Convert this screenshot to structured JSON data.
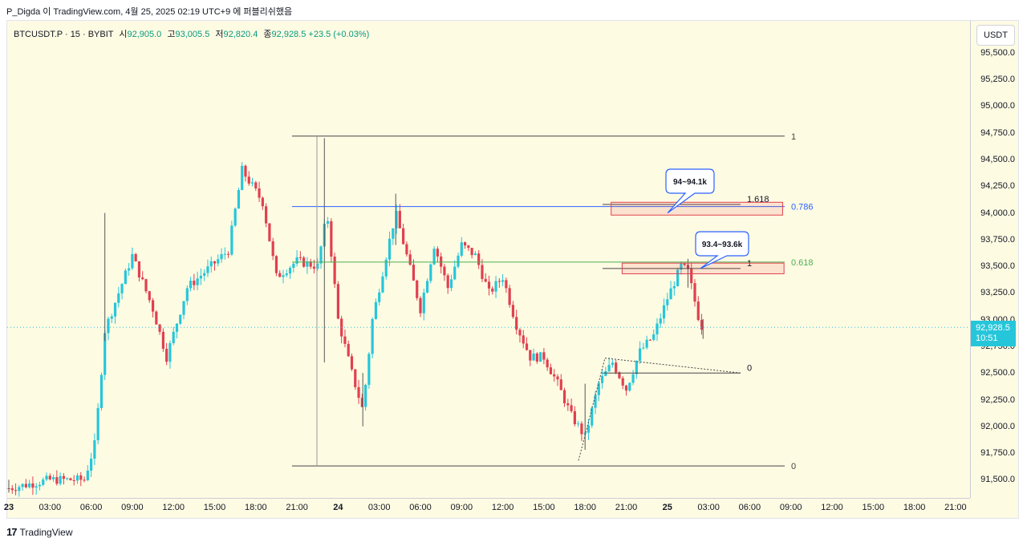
{
  "attribution": "P_Digda 이 TradingView.com, 4월 25, 2025 02:19 UTC+9 에 퍼블리쉬했음",
  "legend": {
    "symbol": "BTCUSDT.P · 15 · BYBIT",
    "open_label": "시",
    "open": "92,905.0",
    "high_label": "고",
    "high": "93,005.5",
    "low_label": "저",
    "low": "92,820.4",
    "close_label": "종",
    "close": "92,928.5",
    "change": "+23.5 (+0.03%)"
  },
  "currency": "USDT",
  "last_price": {
    "value": "92,928.5",
    "countdown": "10:51"
  },
  "footer": {
    "logo_mark": "17",
    "logo_text": "TradingView"
  },
  "colors": {
    "up": "#26c6da",
    "down": "#e0404f",
    "background": "#fefbe3",
    "fib_blue": "#2962ff",
    "fib_green": "#4caf50"
  },
  "chart_data": {
    "type": "candlestick",
    "timeframe": "15",
    "ylim": [
      91330,
      95800
    ],
    "y_ticks": [
      "91,500.0",
      "91,750.0",
      "92,000.0",
      "92,250.0",
      "92,500.0",
      "92,750.0",
      "93,000.0",
      "93,250.0",
      "93,500.0",
      "93,750.0",
      "94,000.0",
      "94,250.0",
      "94,500.0",
      "94,750.0",
      "95,000.0",
      "95,250.0",
      "95,500.0"
    ],
    "y_tick_values": [
      91500,
      91750,
      92000,
      92250,
      92500,
      92750,
      93000,
      93250,
      93500,
      93750,
      94000,
      94250,
      94500,
      94750,
      95000,
      95250,
      95500
    ],
    "x_ticks": [
      {
        "label": "23",
        "day": true
      },
      {
        "label": "03:00"
      },
      {
        "label": "06:00"
      },
      {
        "label": "09:00"
      },
      {
        "label": "12:00"
      },
      {
        "label": "15:00"
      },
      {
        "label": "18:00"
      },
      {
        "label": "21:00"
      },
      {
        "label": "24",
        "day": true
      },
      {
        "label": "03:00"
      },
      {
        "label": "06:00"
      },
      {
        "label": "09:00"
      },
      {
        "label": "12:00"
      },
      {
        "label": "15:00"
      },
      {
        "label": "18:00"
      },
      {
        "label": "21:00"
      },
      {
        "label": "25",
        "day": true
      },
      {
        "label": "03:00"
      },
      {
        "label": "06:00"
      },
      {
        "label": "09:00"
      },
      {
        "label": "12:00"
      },
      {
        "label": "15:00"
      },
      {
        "label": "18:00"
      },
      {
        "label": "21:00"
      }
    ],
    "x_tick_hours": [
      0,
      3,
      6,
      9,
      12,
      15,
      18,
      21,
      24,
      27,
      30,
      33,
      36,
      39,
      42,
      45,
      48,
      51,
      54,
      57,
      60,
      63,
      66,
      69
    ],
    "price_path": [
      [
        0,
        91420
      ],
      [
        3,
        91500
      ],
      [
        5.5,
        91500
      ],
      [
        6.3,
        91850
      ],
      [
        7,
        92900
      ],
      [
        9,
        93600
      ],
      [
        10.5,
        93100
      ],
      [
        11.5,
        92650
      ],
      [
        13,
        93300
      ],
      [
        14.3,
        93450
      ],
      [
        16,
        93650
      ],
      [
        17,
        94400
      ],
      [
        18.5,
        94100
      ],
      [
        19.5,
        93400
      ],
      [
        21,
        93550
      ],
      [
        22.5,
        93500
      ],
      [
        23.2,
        94000
      ],
      [
        24,
        93000
      ],
      [
        25,
        92500
      ],
      [
        25.8,
        92150
      ],
      [
        26.5,
        93000
      ],
      [
        27.5,
        93600
      ],
      [
        28.2,
        94000
      ],
      [
        29,
        93600
      ],
      [
        30,
        93100
      ],
      [
        31,
        93700
      ],
      [
        32,
        93300
      ],
      [
        33,
        93700
      ],
      [
        34,
        93600
      ],
      [
        35,
        93250
      ],
      [
        36,
        93400
      ],
      [
        37,
        92950
      ],
      [
        38,
        92650
      ],
      [
        39,
        92650
      ],
      [
        40,
        92400
      ],
      [
        41,
        92100
      ],
      [
        42,
        91900
      ],
      [
        43,
        92400
      ],
      [
        44,
        92600
      ],
      [
        45,
        92350
      ],
      [
        46,
        92700
      ],
      [
        47,
        92850
      ],
      [
        48,
        93200
      ],
      [
        49,
        93500
      ],
      [
        49.5,
        93450
      ],
      [
        50.4,
        92950
      ],
      [
        50.6,
        92928
      ]
    ],
    "bars": [
      {
        "x": 0,
        "high": 91500,
        "low": 91380
      },
      {
        "x": 7,
        "high": 94000,
        "low": 92800
      },
      {
        "x": 23,
        "high": 94700,
        "low": 92600
      },
      {
        "x": 25.8,
        "high": 92500,
        "low": 92000
      },
      {
        "x": 28.2,
        "high": 94180,
        "low": 93700
      },
      {
        "x": 42,
        "high": 92400,
        "low": 91780
      },
      {
        "x": 49.5,
        "high": 93570,
        "low": 93300
      },
      {
        "x": 50.6,
        "high": 93005.5,
        "low": 92820.4
      }
    ],
    "drawings": {
      "fib_left": {
        "levels": [
          {
            "label": "1",
            "price": 94720
          },
          {
            "label": "0.786",
            "price": 94060
          },
          {
            "label": "0.618",
            "price": 93540
          },
          {
            "label": "0",
            "price": 91630
          }
        ]
      },
      "fib_right": {
        "levels": [
          {
            "label": "1.618",
            "price": 94080
          },
          {
            "label": "1",
            "price": 93480
          },
          {
            "label": "0",
            "price": 92500
          }
        ]
      },
      "zones": [
        {
          "from": 93980,
          "to": 94100,
          "x_from": 43.9,
          "x_to": 56.4
        },
        {
          "from": 93430,
          "to": 93530,
          "x_from": 44.7,
          "x_to": 56.5
        }
      ],
      "callouts": [
        "94~94.1k",
        "93.4~93.6k"
      ]
    }
  }
}
